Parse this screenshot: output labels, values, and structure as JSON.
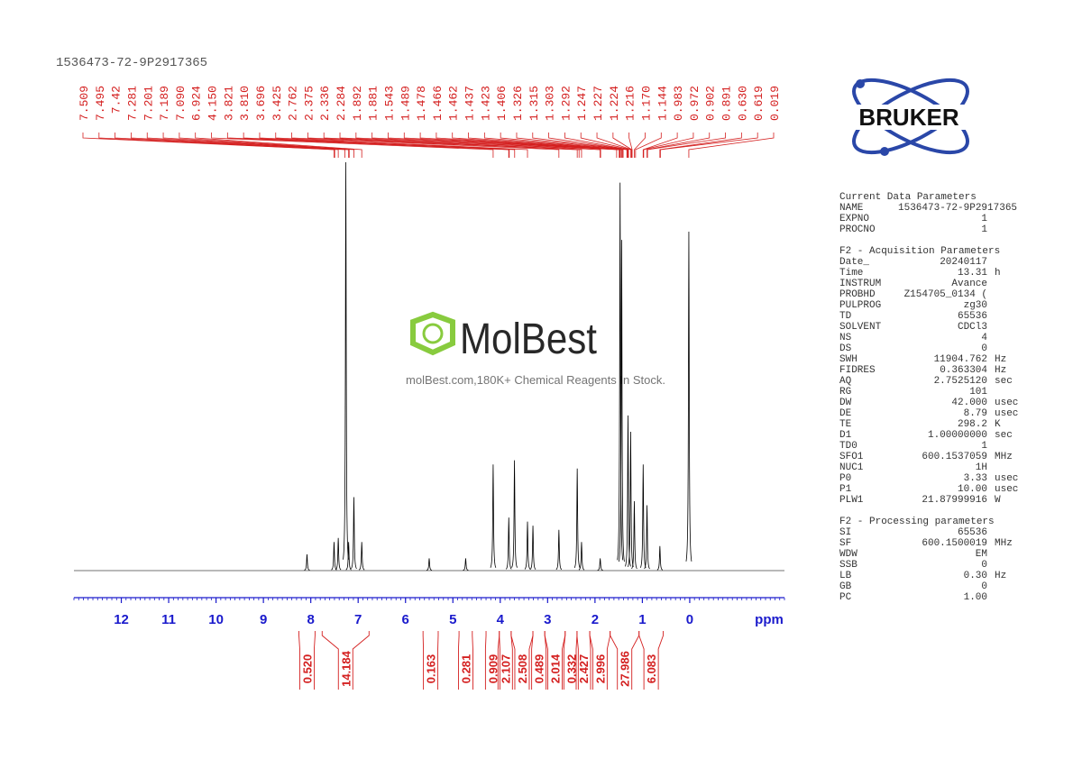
{
  "header": {
    "title": "1536473-72-9P2917365"
  },
  "logo": {
    "text": "BRUKER"
  },
  "watermark": {
    "brand": "MolBest",
    "slogan": "molBest.com,180K+ Chemical Reagents In Stock."
  },
  "chart_data": {
    "type": "nmr",
    "xlim": [
      13,
      -2
    ],
    "xticks": [
      12,
      11,
      10,
      9,
      8,
      7,
      6,
      5,
      4,
      3,
      2,
      1,
      0
    ],
    "x_label": "ppm",
    "color": "#000000",
    "label_color": "#d42020",
    "axis_color": "#1a1acc",
    "peaks": {
      "ppm": [
        8.08,
        7.509,
        7.42,
        7.26,
        7.201,
        7.09,
        6.924,
        5.5,
        4.73,
        4.15,
        3.82,
        3.7,
        3.425,
        3.31,
        2.762,
        2.375,
        2.284,
        1.89,
        1.47,
        1.437,
        1.303,
        1.247,
        1.17,
        0.983,
        0.902,
        0.63,
        0.019
      ],
      "height": [
        4,
        7,
        8,
        100,
        7,
        18,
        7,
        3,
        3,
        26,
        13,
        27,
        12,
        11,
        10,
        25,
        7,
        3,
        95,
        81,
        38,
        34,
        17,
        26,
        16,
        6,
        83
      ]
    },
    "peak_labels": [
      7.509,
      7.495,
      7.42,
      7.281,
      7.201,
      7.189,
      {
        "value": 7.09,
        "label": "7.090"
      },
      6.924,
      {
        "value": 4.15,
        "label": "4.150"
      },
      3.821,
      {
        "value": 3.81,
        "label": "3.810"
      },
      3.696,
      3.425,
      2.762,
      2.375,
      2.336,
      2.284,
      1.892,
      1.881,
      1.543,
      1.489,
      1.478,
      1.466,
      1.462,
      1.437,
      1.423,
      1.406,
      1.326,
      1.315,
      1.303,
      1.292,
      1.247,
      1.227,
      1.224,
      1.216,
      {
        "value": 1.17,
        "label": "1.170"
      },
      1.144,
      0.983,
      0.972,
      0.902,
      0.891,
      {
        "value": 0.63,
        "label": "0.630"
      },
      0.619,
      0.019
    ],
    "integrals": {
      "values": [
        {
          "value": 0.52,
          "label": "0.520"
        },
        14.184,
        0.163,
        0.281,
        0.909,
        2.107,
        2.508,
        0.489,
        2.014,
        0.332,
        2.427,
        2.996,
        27.986,
        6.083
      ],
      "from": [
        8.25,
        7.76,
        5.63,
        4.87,
        4.3,
        4.02,
        3.77,
        3.31,
        3.06,
        2.63,
        2.38,
        2.11,
        1.68,
        1.07
      ],
      "to": [
        7.91,
        6.77,
        5.31,
        4.59,
        4.02,
        3.77,
        3.31,
        3.06,
        2.63,
        2.38,
        2.11,
        1.68,
        1.07,
        0.56
      ]
    }
  },
  "parameters": {
    "groups": [
      {
        "title": "Current Data Parameters",
        "rows": [
          [
            "NAME",
            "1536473-72-9P2917365",
            ""
          ],
          [
            "EXPNO",
            "1",
            ""
          ],
          [
            "PROCNO",
            "1",
            ""
          ]
        ]
      },
      {
        "title": "F2 - Acquisition Parameters",
        "rows": [
          [
            "Date_",
            "20240117",
            ""
          ],
          [
            "Time",
            "13.31",
            "h"
          ],
          [
            "INSTRUM",
            "Avance",
            ""
          ],
          [
            "PROBHD",
            "Z154705_0134 (",
            ""
          ],
          [
            "PULPROG",
            "zg30",
            ""
          ],
          [
            "TD",
            "65536",
            ""
          ],
          [
            "SOLVENT",
            "CDCl3",
            ""
          ],
          [
            "NS",
            "4",
            ""
          ],
          [
            "DS",
            "0",
            ""
          ],
          [
            "SWH",
            "11904.762",
            "Hz"
          ],
          [
            "FIDRES",
            "0.363304",
            "Hz"
          ],
          [
            "AQ",
            "2.7525120",
            "sec"
          ],
          [
            "RG",
            "101",
            ""
          ],
          [
            "DW",
            "42.000",
            "usec"
          ],
          [
            "DE",
            "8.79",
            "usec"
          ],
          [
            "TE",
            "298.2",
            "K"
          ],
          [
            "D1",
            "1.00000000",
            "sec"
          ],
          [
            "TD0",
            "1",
            ""
          ],
          [
            "SFO1",
            "600.1537059",
            "MHz"
          ],
          [
            "NUC1",
            "1H",
            ""
          ],
          [
            "P0",
            "3.33",
            "usec"
          ],
          [
            "P1",
            "10.00",
            "usec"
          ],
          [
            "PLW1",
            "21.87999916",
            "W"
          ]
        ]
      },
      {
        "title": "F2 - Processing parameters",
        "rows": [
          [
            "SI",
            "65536",
            ""
          ],
          [
            "SF",
            "600.1500019",
            "MHz"
          ],
          [
            "WDW",
            "EM",
            ""
          ],
          [
            "SSB",
            "0",
            ""
          ],
          [
            "LB",
            "0.30",
            "Hz"
          ],
          [
            "GB",
            "0",
            ""
          ],
          [
            "PC",
            "1.00",
            ""
          ]
        ]
      }
    ]
  }
}
